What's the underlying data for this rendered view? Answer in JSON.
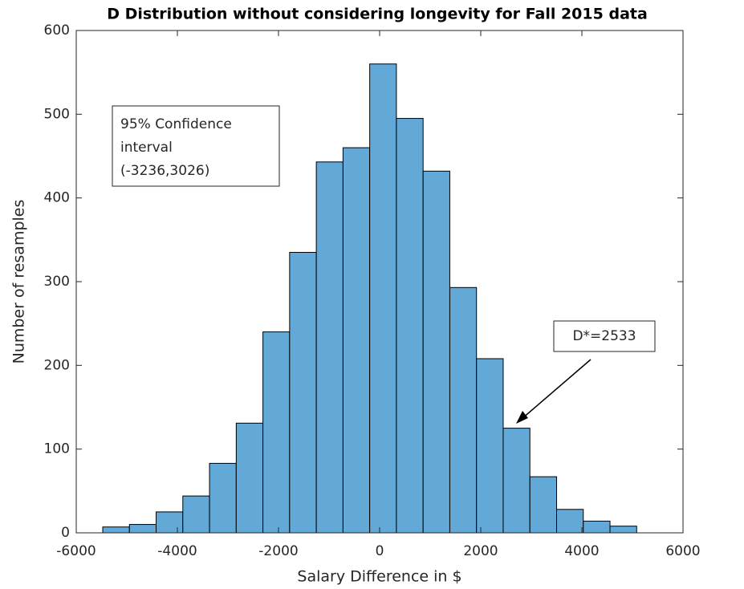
{
  "chart_data": {
    "type": "histogram",
    "title": "D Distribution without considering longevity for Fall 2015 data",
    "x_label": "Salary Difference in $",
    "y_label": "Number of resamples",
    "bins": [
      -5476,
      -4948,
      -4420,
      -3892,
      -3364,
      -2836,
      -2308,
      -1780,
      -1252,
      -724,
      -196,
      332,
      860,
      1388,
      1916,
      2444,
      2972,
      3500,
      4028,
      4556,
      5084
    ],
    "values": [
      7,
      10,
      25,
      44,
      83,
      131,
      240,
      335,
      443,
      460,
      560,
      495,
      432,
      293,
      208,
      125,
      67,
      28,
      14,
      8
    ],
    "color": "#62a9d8",
    "xlim": [
      -6000,
      6000
    ],
    "xticks": [
      -6000,
      -4000,
      -2000,
      0,
      2000,
      4000,
      6000
    ],
    "ylim": [
      0,
      600
    ],
    "yticks": [
      0,
      100,
      200,
      300,
      400,
      500,
      600
    ],
    "annotations": [
      {
        "lines": [
          "95% Confidence",
          "interval",
          "(-3236,3026)"
        ]
      },
      {
        "lines": [
          "D*=2533"
        ]
      }
    ]
  }
}
